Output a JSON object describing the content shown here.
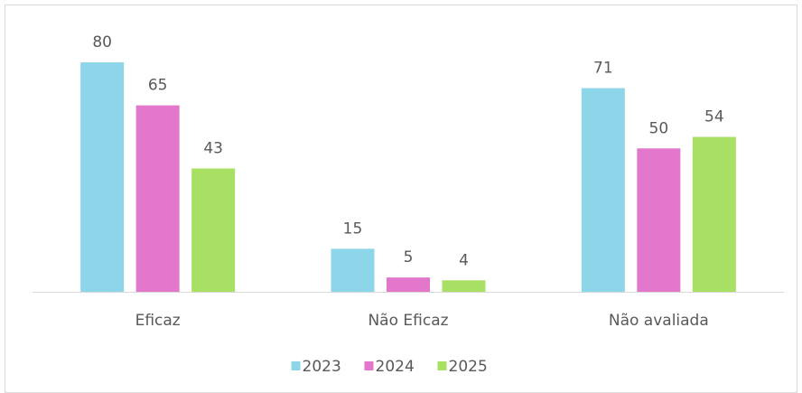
{
  "chart_data": {
    "type": "bar",
    "categories": [
      "Eficaz",
      "Não Eficaz",
      "Não avaliada"
    ],
    "series": [
      {
        "name": "2023",
        "color": "#8dd5e8",
        "values": [
          80,
          15,
          71
        ]
      },
      {
        "name": "2024",
        "color": "#e377cc",
        "values": [
          65,
          5,
          50
        ]
      },
      {
        "name": "2025",
        "color": "#a8e063",
        "values": [
          43,
          4,
          54
        ]
      }
    ]
  }
}
